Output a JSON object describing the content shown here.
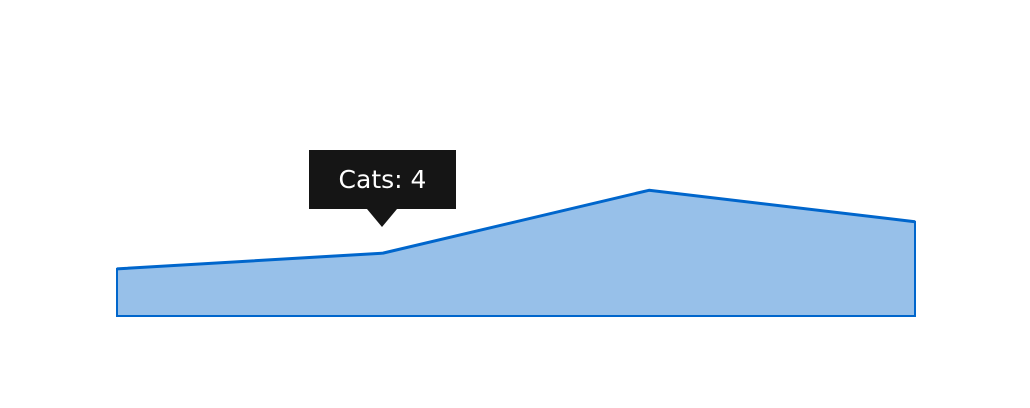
{
  "chart_data": {
    "type": "area",
    "categories": [
      "",
      "",
      "",
      ""
    ],
    "series": [
      {
        "name": "Cats",
        "values": [
          3,
          4,
          8,
          6
        ]
      }
    ],
    "ylim": [
      0,
      14
    ],
    "grid": false,
    "colors": {
      "fill": "#97c0e9",
      "stroke": "#0066cc"
    }
  },
  "tooltip": {
    "text": "Cats: 4",
    "series": "Cats",
    "index": 1
  }
}
